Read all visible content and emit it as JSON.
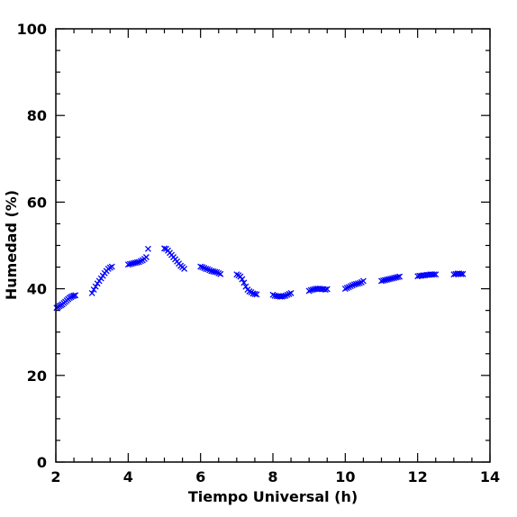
{
  "chart_data": {
    "type": "scatter",
    "title": "",
    "xlabel": "Tiempo Universal (h)",
    "ylabel": "Humedad (%)",
    "xlim": [
      2,
      14
    ],
    "ylim": [
      0,
      100
    ],
    "x_ticks": [
      2,
      4,
      6,
      8,
      10,
      12,
      14
    ],
    "y_ticks": [
      0,
      20,
      40,
      60,
      80,
      100
    ],
    "grid": false,
    "marker": "x",
    "marker_color": "#0000ff",
    "series": [
      {
        "x": [
          2.02,
          2.06,
          2.1,
          2.14,
          2.18,
          2.22,
          2.26,
          2.3,
          2.34,
          2.38,
          2.42,
          2.46,
          2.5,
          2.54,
          3.0,
          3.05,
          3.1,
          3.15,
          3.2,
          3.25,
          3.3,
          3.35,
          3.4,
          3.45,
          3.5,
          3.55,
          4.0,
          4.05,
          4.1,
          4.15,
          4.2,
          4.25,
          4.3,
          4.35,
          4.4,
          4.45,
          4.5,
          4.55,
          5.0,
          5.05,
          5.1,
          5.15,
          5.2,
          5.25,
          5.3,
          5.35,
          5.4,
          5.45,
          5.5,
          5.55,
          6.0,
          6.05,
          6.1,
          6.15,
          6.2,
          6.25,
          6.3,
          6.35,
          6.4,
          6.45,
          6.5,
          6.55,
          7.0,
          7.05,
          7.1,
          7.15,
          7.2,
          7.25,
          7.3,
          7.35,
          7.4,
          7.45,
          7.5,
          7.55,
          8.0,
          8.05,
          8.1,
          8.15,
          8.2,
          8.25,
          8.3,
          8.35,
          8.4,
          8.45,
          8.5,
          9.0,
          9.05,
          9.1,
          9.15,
          9.2,
          9.25,
          9.3,
          9.35,
          9.4,
          9.45,
          9.5,
          10.0,
          10.05,
          10.1,
          10.15,
          10.2,
          10.25,
          10.3,
          10.35,
          10.4,
          10.45,
          10.5,
          11.0,
          11.05,
          11.1,
          11.15,
          11.2,
          11.25,
          11.3,
          11.35,
          11.4,
          11.45,
          11.5,
          12.0,
          12.05,
          12.1,
          12.15,
          12.2,
          12.25,
          12.3,
          12.35,
          12.4,
          12.45,
          12.5,
          13.0,
          13.05,
          13.1,
          13.15,
          13.2,
          13.25
        ],
        "y": [
          35.6,
          35.8,
          36.0,
          36.2,
          36.4,
          36.7,
          37.0,
          37.3,
          37.6,
          37.9,
          38.1,
          38.3,
          38.4,
          38.5,
          39.0,
          39.8,
          40.5,
          41.2,
          41.8,
          42.4,
          43.0,
          43.6,
          44.1,
          44.6,
          44.9,
          45.1,
          45.6,
          45.7,
          45.8,
          45.9,
          46.0,
          46.1,
          46.2,
          46.4,
          46.6,
          46.9,
          47.3,
          49.2,
          49.3,
          49.2,
          48.8,
          48.3,
          47.8,
          47.3,
          46.8,
          46.3,
          45.8,
          45.3,
          45.0,
          44.6,
          45.1,
          45.0,
          44.8,
          44.6,
          44.5,
          44.3,
          44.1,
          44.0,
          43.9,
          43.8,
          43.6,
          43.4,
          43.3,
          43.1,
          42.8,
          42.2,
          41.4,
          40.5,
          39.8,
          39.4,
          39.2,
          38.9,
          38.8,
          38.7,
          38.6,
          38.4,
          38.3,
          38.3,
          38.2,
          38.2,
          38.3,
          38.4,
          38.6,
          38.8,
          39.0,
          39.5,
          39.7,
          39.8,
          39.9,
          40.0,
          40.0,
          40.0,
          39.9,
          39.9,
          39.8,
          39.9,
          40.0,
          40.2,
          40.4,
          40.6,
          40.8,
          41.0,
          41.1,
          41.2,
          41.3,
          41.5,
          41.8,
          41.8,
          41.9,
          42.0,
          42.1,
          42.2,
          42.3,
          42.4,
          42.5,
          42.6,
          42.7,
          42.8,
          42.9,
          43.0,
          43.0,
          43.1,
          43.1,
          43.2,
          43.2,
          43.3,
          43.3,
          43.3,
          43.3,
          43.3,
          43.4,
          43.5,
          43.5,
          43.4,
          43.4
        ]
      }
    ]
  }
}
